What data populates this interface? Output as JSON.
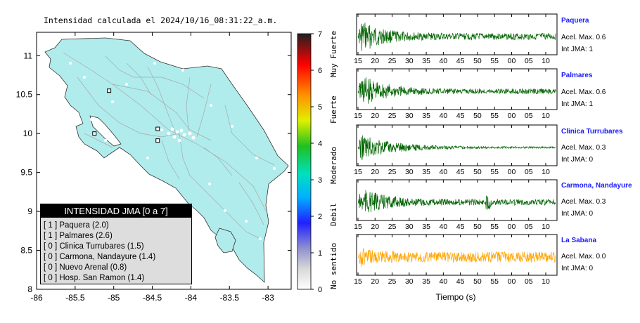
{
  "title": "Intensidad calculada el 2024/10/16_08:31:22_a.m.",
  "map": {
    "x_ticks": [
      "-86",
      "-85.5",
      "-85",
      "-84.5",
      "-84",
      "-83.5",
      "-83"
    ],
    "x_values": [
      -86,
      -85.5,
      -85,
      -84.5,
      -84,
      -83.5,
      -83
    ],
    "y_ticks": [
      "8",
      "8.5",
      "9",
      "9.5",
      "10",
      "10.5",
      "11"
    ],
    "y_values": [
      8,
      8.5,
      9,
      9.5,
      10,
      10.5,
      11
    ],
    "xlim": [
      -86,
      -82.7
    ],
    "ylim": [
      8,
      11.3
    ],
    "land_color": "#b0ecec",
    "sea_color": "#ffffff",
    "stations": [
      {
        "lon": -85.06,
        "lat": 10.55
      },
      {
        "lon": -85.25,
        "lat": 10.0
      },
      {
        "lon": -84.43,
        "lat": 10.06
      },
      {
        "lon": -84.43,
        "lat": 9.91
      }
    ]
  },
  "legend": {
    "header": "INTENSIDAD JMA [0 a 7]",
    "items": [
      "[ 1 ]  Paquera (2.0)",
      "[ 1 ]  Palmares (2.6)",
      "[ 0 ]  Clinica Turrubares (1.5)",
      "[ 0 ]  Carmona, Nandayure (1.4)",
      "[ 0 ]  Nuevo Arenal (0.8)",
      "[ 0 ]  Hosp. San Ramon (1.4)"
    ]
  },
  "colorbar": {
    "ticks": [
      "0",
      "1",
      "2",
      "3",
      "4",
      "5",
      "6",
      "7"
    ],
    "range": [
      0,
      7
    ],
    "labels": [
      "No sentido",
      "Debil",
      "Moderado",
      "Fuerte",
      "Muy Fuerte"
    ]
  },
  "chart_data": {
    "type": "line",
    "x_tick_labels": [
      "15",
      "20",
      "25",
      "30",
      "35",
      "40",
      "45",
      "50",
      "55",
      "00",
      "05",
      "10"
    ],
    "xlabel": "Tiempo (s)",
    "series": [
      {
        "name": "Paquera",
        "acc_label": "Acel. Max. 0.6",
        "int_label": "Int JMA: 1",
        "color": "#006400"
      },
      {
        "name": "Palmares",
        "acc_label": "Acel. Max. 0.6",
        "int_label": "Int JMA: 1",
        "color": "#006400"
      },
      {
        "name": "Clinica Turrubares",
        "acc_label": "Acel. Max. 0.3",
        "int_label": "Int JMA: 0",
        "color": "#006400"
      },
      {
        "name": "Carmona, Nandayure",
        "acc_label": "Acel. Max. 0.3",
        "int_label": "Int JMA: 0",
        "color": "#006400"
      },
      {
        "name": "La Sabana",
        "acc_label": "Acel. Max. 0.0",
        "int_label": "Int JMA: 0",
        "color": "#ffa500"
      }
    ]
  }
}
